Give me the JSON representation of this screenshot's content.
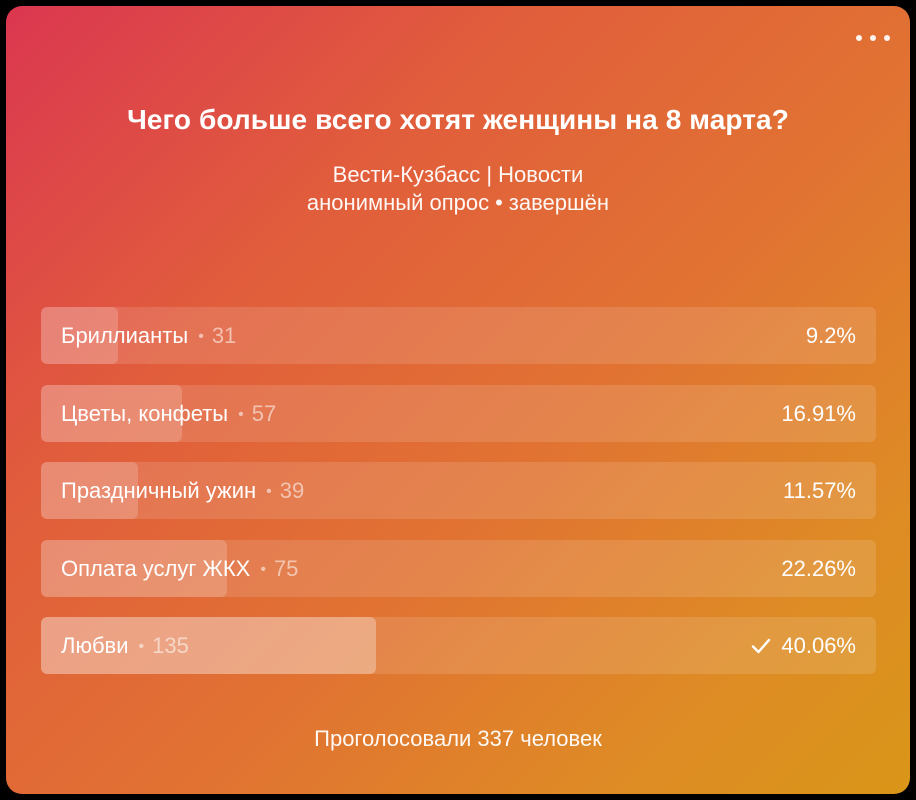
{
  "poll": {
    "question": "Чего больше всего хотят женщины на 8 марта?",
    "source": "Вести-Кузбасс | Новости",
    "type": "анонимный опрос",
    "separator": "•",
    "status": "завершён",
    "menu_icon": "more-horizontal-icon",
    "options": [
      {
        "label": "Бриллианты",
        "votes": "31",
        "percent": "9.2%",
        "share": 0.092,
        "chosen": false
      },
      {
        "label": "Цветы, конфеты",
        "votes": "57",
        "percent": "16.91%",
        "share": 0.1691,
        "chosen": false
      },
      {
        "label": "Праздничный ужин",
        "votes": "39",
        "percent": "11.57%",
        "share": 0.1157,
        "chosen": false
      },
      {
        "label": "Оплата услуг ЖКХ",
        "votes": "75",
        "percent": "22.26%",
        "share": 0.2226,
        "chosen": false
      },
      {
        "label": "Любви",
        "votes": "135",
        "percent": "40.06%",
        "share": 0.4006,
        "chosen": true
      }
    ],
    "total_text": "Проголосовали 337 человек"
  },
  "colors": {
    "gradient_start": "#db3750",
    "gradient_end": "#d99618"
  }
}
